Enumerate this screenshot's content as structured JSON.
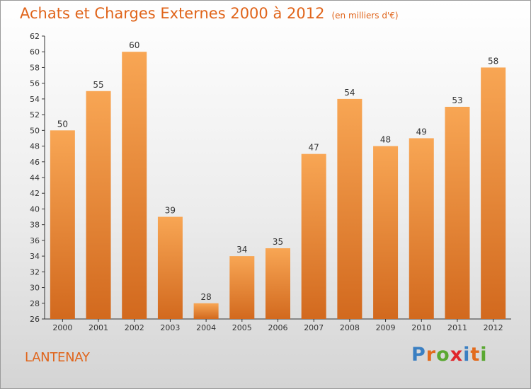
{
  "header": {
    "title": "Achats et Charges Externes 2000 à 2012",
    "unit": "(en milliers d'€)"
  },
  "footer": {
    "commune": "LANTENAY",
    "logo": "Proxiti"
  },
  "colors": {
    "accent": "#e0641a",
    "bar_top": "#f8a654",
    "bar_bottom": "#d2691e",
    "logo_letters": [
      "#3a7fc2",
      "#e26b1d",
      "#5aa832",
      "#e0262b",
      "#3a7fc2",
      "#e26b1d",
      "#5aa832"
    ]
  },
  "chart_data": {
    "type": "bar",
    "title": "Achats et Charges Externes 2000 à 2012",
    "subtitle": "(en milliers d'€)",
    "categories": [
      "2000",
      "2001",
      "2002",
      "2003",
      "2004",
      "2005",
      "2006",
      "2007",
      "2008",
      "2009",
      "2010",
      "2011",
      "2012"
    ],
    "values": [
      50,
      55,
      60,
      39,
      28,
      34,
      35,
      47,
      54,
      48,
      49,
      53,
      58
    ],
    "xlabel": "",
    "ylabel": "",
    "ylim": [
      26,
      62
    ],
    "ytick_step": 2,
    "grid": false,
    "legend": "none",
    "data_labels": true
  }
}
